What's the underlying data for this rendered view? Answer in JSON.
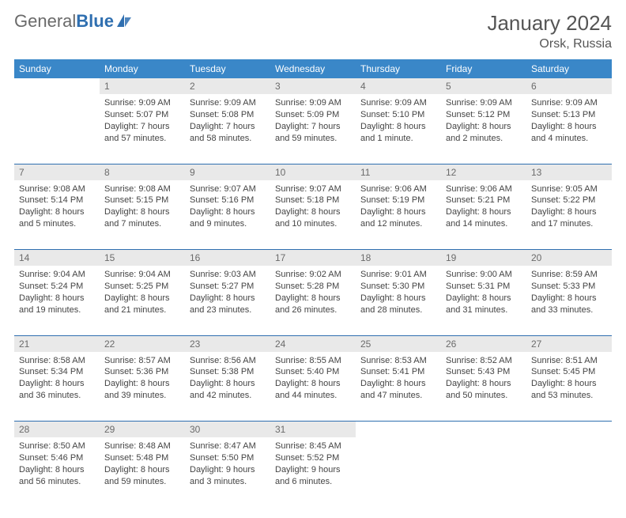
{
  "brand": {
    "general": "General",
    "blue": "Blue"
  },
  "title": "January 2024",
  "location": "Orsk, Russia",
  "colors": {
    "header_bg": "#3a87c8",
    "header_fg": "#ffffff",
    "daynum_bg": "#e9e9e9",
    "daynum_fg": "#6b6b6b",
    "rule": "#2f6fb0",
    "text": "#444444",
    "logo_gray": "#6a6a6a",
    "logo_blue": "#2f6fb0"
  },
  "dayNames": [
    "Sunday",
    "Monday",
    "Tuesday",
    "Wednesday",
    "Thursday",
    "Friday",
    "Saturday"
  ],
  "weeks": [
    [
      null,
      {
        "n": "1",
        "sunrise": "Sunrise: 9:09 AM",
        "sunset": "Sunset: 5:07 PM",
        "d1": "Daylight: 7 hours",
        "d2": "and 57 minutes."
      },
      {
        "n": "2",
        "sunrise": "Sunrise: 9:09 AM",
        "sunset": "Sunset: 5:08 PM",
        "d1": "Daylight: 7 hours",
        "d2": "and 58 minutes."
      },
      {
        "n": "3",
        "sunrise": "Sunrise: 9:09 AM",
        "sunset": "Sunset: 5:09 PM",
        "d1": "Daylight: 7 hours",
        "d2": "and 59 minutes."
      },
      {
        "n": "4",
        "sunrise": "Sunrise: 9:09 AM",
        "sunset": "Sunset: 5:10 PM",
        "d1": "Daylight: 8 hours",
        "d2": "and 1 minute."
      },
      {
        "n": "5",
        "sunrise": "Sunrise: 9:09 AM",
        "sunset": "Sunset: 5:12 PM",
        "d1": "Daylight: 8 hours",
        "d2": "and 2 minutes."
      },
      {
        "n": "6",
        "sunrise": "Sunrise: 9:09 AM",
        "sunset": "Sunset: 5:13 PM",
        "d1": "Daylight: 8 hours",
        "d2": "and 4 minutes."
      }
    ],
    [
      {
        "n": "7",
        "sunrise": "Sunrise: 9:08 AM",
        "sunset": "Sunset: 5:14 PM",
        "d1": "Daylight: 8 hours",
        "d2": "and 5 minutes."
      },
      {
        "n": "8",
        "sunrise": "Sunrise: 9:08 AM",
        "sunset": "Sunset: 5:15 PM",
        "d1": "Daylight: 8 hours",
        "d2": "and 7 minutes."
      },
      {
        "n": "9",
        "sunrise": "Sunrise: 9:07 AM",
        "sunset": "Sunset: 5:16 PM",
        "d1": "Daylight: 8 hours",
        "d2": "and 9 minutes."
      },
      {
        "n": "10",
        "sunrise": "Sunrise: 9:07 AM",
        "sunset": "Sunset: 5:18 PM",
        "d1": "Daylight: 8 hours",
        "d2": "and 10 minutes."
      },
      {
        "n": "11",
        "sunrise": "Sunrise: 9:06 AM",
        "sunset": "Sunset: 5:19 PM",
        "d1": "Daylight: 8 hours",
        "d2": "and 12 minutes."
      },
      {
        "n": "12",
        "sunrise": "Sunrise: 9:06 AM",
        "sunset": "Sunset: 5:21 PM",
        "d1": "Daylight: 8 hours",
        "d2": "and 14 minutes."
      },
      {
        "n": "13",
        "sunrise": "Sunrise: 9:05 AM",
        "sunset": "Sunset: 5:22 PM",
        "d1": "Daylight: 8 hours",
        "d2": "and 17 minutes."
      }
    ],
    [
      {
        "n": "14",
        "sunrise": "Sunrise: 9:04 AM",
        "sunset": "Sunset: 5:24 PM",
        "d1": "Daylight: 8 hours",
        "d2": "and 19 minutes."
      },
      {
        "n": "15",
        "sunrise": "Sunrise: 9:04 AM",
        "sunset": "Sunset: 5:25 PM",
        "d1": "Daylight: 8 hours",
        "d2": "and 21 minutes."
      },
      {
        "n": "16",
        "sunrise": "Sunrise: 9:03 AM",
        "sunset": "Sunset: 5:27 PM",
        "d1": "Daylight: 8 hours",
        "d2": "and 23 minutes."
      },
      {
        "n": "17",
        "sunrise": "Sunrise: 9:02 AM",
        "sunset": "Sunset: 5:28 PM",
        "d1": "Daylight: 8 hours",
        "d2": "and 26 minutes."
      },
      {
        "n": "18",
        "sunrise": "Sunrise: 9:01 AM",
        "sunset": "Sunset: 5:30 PM",
        "d1": "Daylight: 8 hours",
        "d2": "and 28 minutes."
      },
      {
        "n": "19",
        "sunrise": "Sunrise: 9:00 AM",
        "sunset": "Sunset: 5:31 PM",
        "d1": "Daylight: 8 hours",
        "d2": "and 31 minutes."
      },
      {
        "n": "20",
        "sunrise": "Sunrise: 8:59 AM",
        "sunset": "Sunset: 5:33 PM",
        "d1": "Daylight: 8 hours",
        "d2": "and 33 minutes."
      }
    ],
    [
      {
        "n": "21",
        "sunrise": "Sunrise: 8:58 AM",
        "sunset": "Sunset: 5:34 PM",
        "d1": "Daylight: 8 hours",
        "d2": "and 36 minutes."
      },
      {
        "n": "22",
        "sunrise": "Sunrise: 8:57 AM",
        "sunset": "Sunset: 5:36 PM",
        "d1": "Daylight: 8 hours",
        "d2": "and 39 minutes."
      },
      {
        "n": "23",
        "sunrise": "Sunrise: 8:56 AM",
        "sunset": "Sunset: 5:38 PM",
        "d1": "Daylight: 8 hours",
        "d2": "and 42 minutes."
      },
      {
        "n": "24",
        "sunrise": "Sunrise: 8:55 AM",
        "sunset": "Sunset: 5:40 PM",
        "d1": "Daylight: 8 hours",
        "d2": "and 44 minutes."
      },
      {
        "n": "25",
        "sunrise": "Sunrise: 8:53 AM",
        "sunset": "Sunset: 5:41 PM",
        "d1": "Daylight: 8 hours",
        "d2": "and 47 minutes."
      },
      {
        "n": "26",
        "sunrise": "Sunrise: 8:52 AM",
        "sunset": "Sunset: 5:43 PM",
        "d1": "Daylight: 8 hours",
        "d2": "and 50 minutes."
      },
      {
        "n": "27",
        "sunrise": "Sunrise: 8:51 AM",
        "sunset": "Sunset: 5:45 PM",
        "d1": "Daylight: 8 hours",
        "d2": "and 53 minutes."
      }
    ],
    [
      {
        "n": "28",
        "sunrise": "Sunrise: 8:50 AM",
        "sunset": "Sunset: 5:46 PM",
        "d1": "Daylight: 8 hours",
        "d2": "and 56 minutes."
      },
      {
        "n": "29",
        "sunrise": "Sunrise: 8:48 AM",
        "sunset": "Sunset: 5:48 PM",
        "d1": "Daylight: 8 hours",
        "d2": "and 59 minutes."
      },
      {
        "n": "30",
        "sunrise": "Sunrise: 8:47 AM",
        "sunset": "Sunset: 5:50 PM",
        "d1": "Daylight: 9 hours",
        "d2": "and 3 minutes."
      },
      {
        "n": "31",
        "sunrise": "Sunrise: 8:45 AM",
        "sunset": "Sunset: 5:52 PM",
        "d1": "Daylight: 9 hours",
        "d2": "and 6 minutes."
      },
      null,
      null,
      null
    ]
  ]
}
